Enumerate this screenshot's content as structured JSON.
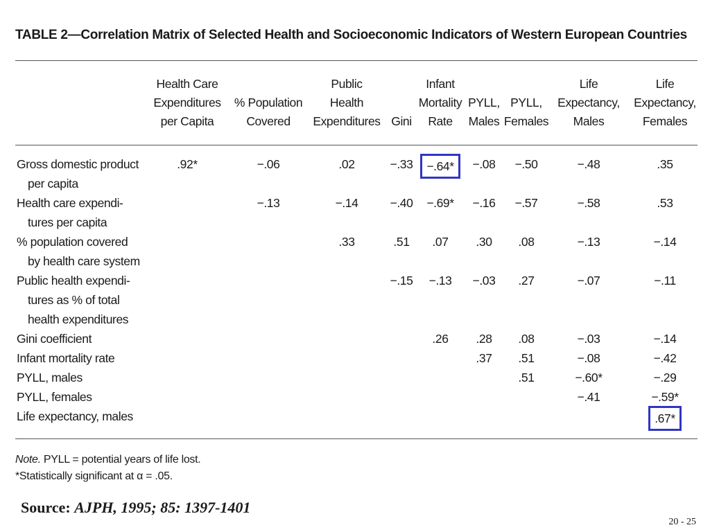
{
  "title": "TABLE 2—Correlation Matrix of Selected Health and Socioeconomic Indicators of Western European Countries",
  "columns": [
    [
      "Health Care",
      "Expenditures",
      "per Capita"
    ],
    [
      "% Population",
      "Covered"
    ],
    [
      "Public",
      "Health",
      "Expenditures"
    ],
    [
      "Gini"
    ],
    [
      "Infant",
      "Mortality",
      "Rate"
    ],
    [
      "PYLL,",
      "Males"
    ],
    [
      "PYLL,",
      "Females"
    ],
    [
      "Life",
      "Expectancy,",
      "Males"
    ],
    [
      "Life",
      "Expectancy,",
      "Females"
    ]
  ],
  "rows": [
    {
      "label": [
        "Gross domestic product",
        "per capita"
      ],
      "values": [
        ".92*",
        "−.06",
        ".02",
        "−.33",
        "−.64*",
        "−.08",
        "−.50",
        "−.48",
        ".35"
      ]
    },
    {
      "label": [
        "Health care expendi-",
        "tures per capita"
      ],
      "values": [
        "",
        "−.13",
        "−.14",
        "−.40",
        "−.69*",
        "−.16",
        "−.57",
        "−.58",
        ".53"
      ]
    },
    {
      "label": [
        "% population covered",
        "by health care system"
      ],
      "values": [
        "",
        "",
        ".33",
        ".51",
        ".07",
        ".30",
        ".08",
        "−.13",
        "−.14"
      ]
    },
    {
      "label": [
        "Public health expendi-",
        "tures as % of total",
        "health expenditures"
      ],
      "values": [
        "",
        "",
        "",
        "−.15",
        "−.13",
        "−.03",
        ".27",
        "−.07",
        "−.11"
      ]
    },
    {
      "label": [
        "Gini coefficient"
      ],
      "values": [
        "",
        "",
        "",
        "",
        ".26",
        ".28",
        ".08",
        "−.03",
        "−.14"
      ]
    },
    {
      "label": [
        "Infant mortality rate"
      ],
      "values": [
        "",
        "",
        "",
        "",
        "",
        ".37",
        ".51",
        "−.08",
        "−.42"
      ]
    },
    {
      "label": [
        "PYLL, males"
      ],
      "values": [
        "",
        "",
        "",
        "",
        "",
        "",
        ".51",
        "−.60*",
        "−.29"
      ]
    },
    {
      "label": [
        "PYLL, females"
      ],
      "values": [
        "",
        "",
        "",
        "",
        "",
        "",
        "",
        "−.41",
        "−.59*"
      ]
    },
    {
      "label": [
        "Life expectancy, males"
      ],
      "values": [
        "",
        "",
        "",
        "",
        "",
        "",
        "",
        "",
        ".67*"
      ]
    }
  ],
  "highlighted": [
    [
      0,
      4
    ],
    [
      8,
      8
    ]
  ],
  "highlight_color": "#2f35c3",
  "note_label": "Note.",
  "note_text": "PYLL = potential years of life lost.",
  "footnote": "*Statistically significant at α = .05.",
  "source_label": "Source:",
  "source_citation": "AJPH, 1995; 85: 1397-1401",
  "page_number": "20  -  25"
}
